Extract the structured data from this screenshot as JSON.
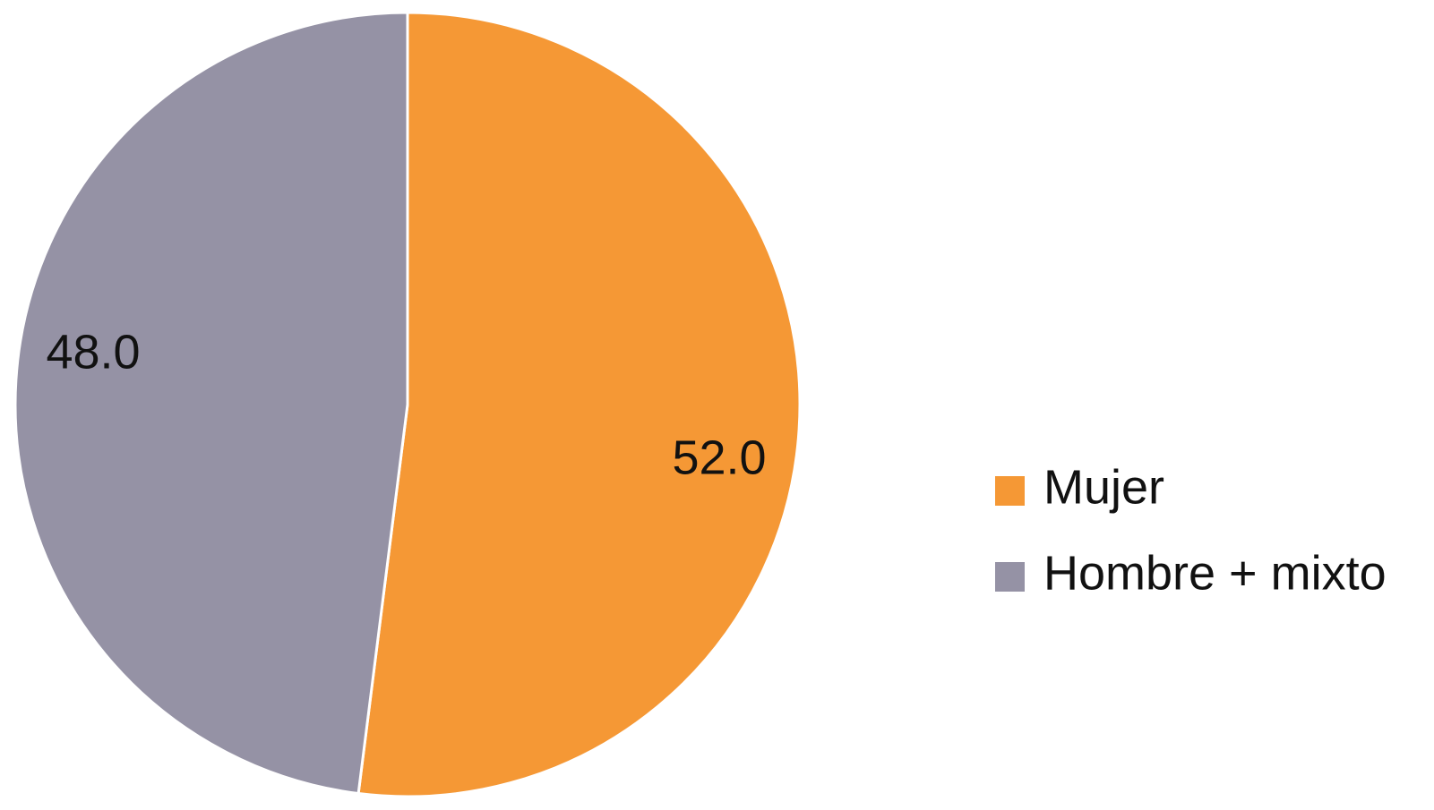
{
  "chart_data": {
    "type": "pie",
    "categories": [
      "Mujer",
      "Hombre + mixto"
    ],
    "values": [
      52,
      48
    ],
    "value_labels": [
      "52.0",
      "48.0"
    ],
    "colors": [
      "#f59835",
      "#9592a5"
    ],
    "legend": "right"
  }
}
